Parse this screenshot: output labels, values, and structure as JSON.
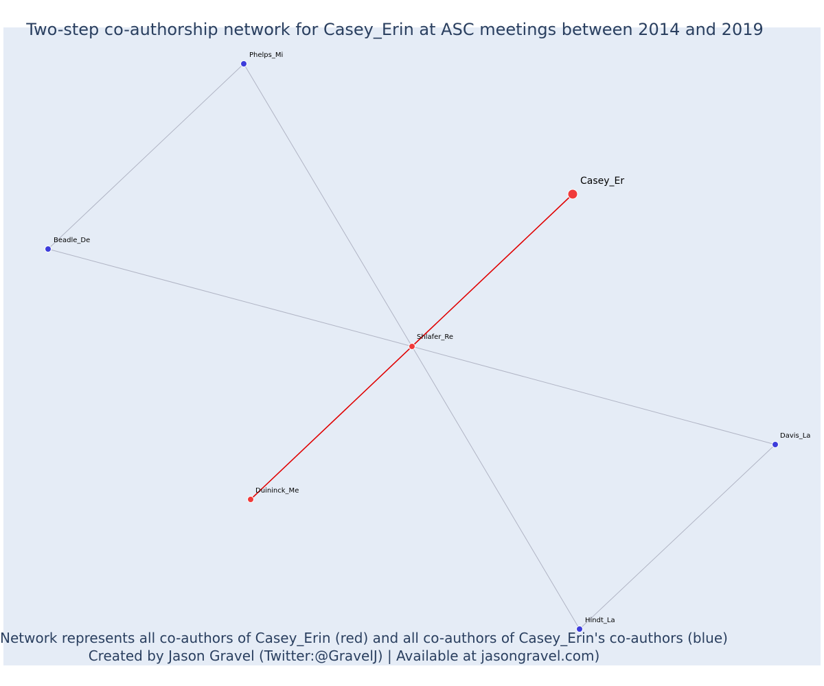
{
  "title": "Two-step co-authorship network for Casey_Erin at ASC meetings between 2014 and 2019",
  "footer": {
    "line1": "Network represents all co-authors of Casey_Erin (red) and all co-authors of Casey_Erin's co-authors (blue)",
    "line2": "Created by Jason Gravel (Twitter:@GravelJ) | Available at jasongravel.com)"
  },
  "colors": {
    "plot_background": "#e5ecf6",
    "text": "#2a3f5f",
    "coauthor_node": "#f03a3a",
    "second_step_node": "#3d3ddb",
    "coauthor_edge": "#e00000",
    "second_step_edge": "#b0b4c4"
  },
  "nodes": [
    {
      "id": "Casey_Er",
      "label": "Casey_Er",
      "group": "ego"
    },
    {
      "id": "Shlafer_Re",
      "label": "Shlafer_Re",
      "group": "coauthor"
    },
    {
      "id": "Duininck_Me",
      "label": "Duininck_Me",
      "group": "coauthor"
    },
    {
      "id": "Phelps_Mi",
      "label": "Phelps_Mi",
      "group": "second_step"
    },
    {
      "id": "Beadle_De",
      "label": "Beadle_De",
      "group": "second_step"
    },
    {
      "id": "Davis_La",
      "label": "Davis_La",
      "group": "second_step"
    },
    {
      "id": "Hindt_La",
      "label": "Hindt_La",
      "group": "second_step"
    }
  ],
  "edges": [
    {
      "source": "Casey_Er",
      "target": "Shlafer_Re",
      "type": "coauthor"
    },
    {
      "source": "Shlafer_Re",
      "target": "Duininck_Me",
      "type": "coauthor"
    },
    {
      "source": "Phelps_Mi",
      "target": "Shlafer_Re",
      "type": "second_step"
    },
    {
      "source": "Shlafer_Re",
      "target": "Hindt_La",
      "type": "second_step"
    },
    {
      "source": "Beadle_De",
      "target": "Shlafer_Re",
      "type": "second_step"
    },
    {
      "source": "Shlafer_Re",
      "target": "Davis_La",
      "type": "second_step"
    },
    {
      "source": "Phelps_Mi",
      "target": "Beadle_De",
      "type": "second_step"
    },
    {
      "source": "Davis_La",
      "target": "Hindt_La",
      "type": "second_step"
    }
  ]
}
